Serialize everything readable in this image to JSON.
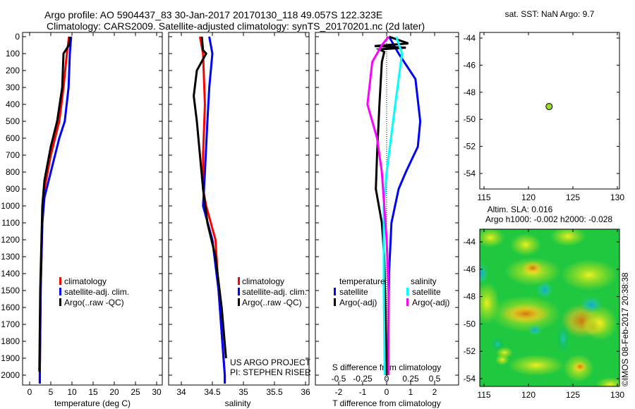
{
  "title_line1": "Argo profile: AO 5904437_83 30-Jan-2017 20170130_118 49.057S 122.323E",
  "title_line2": "Climatology: CARS2009. Satellite-adjusted climatology: synTS_20170201.nc (2d later)",
  "colors": {
    "climatology": "#ff0000",
    "satellite": "#0000ff",
    "argo": "#000000",
    "sal_satellite": "#00ffff",
    "sal_argo": "#ff00ff",
    "map_point": "#99dd22"
  },
  "chart_data": [
    {
      "type": "line",
      "name": "temperature",
      "xlabel": "temperature (deg C)",
      "ylabel": "",
      "xlim": [
        -1,
        31
      ],
      "ylim": [
        2050,
        0
      ],
      "xticks": [
        "0",
        "5",
        "10",
        "15",
        "20",
        "25",
        "30"
      ],
      "xtick_values": [
        0,
        5,
        10,
        15,
        20,
        25,
        30
      ],
      "yticks": [
        "0",
        "100",
        "200",
        "300",
        "400",
        "500",
        "600",
        "700",
        "800",
        "900",
        "1000",
        "1100",
        "1200",
        "1300",
        "1400",
        "1500",
        "1600",
        "1700",
        "1800",
        "1900",
        "2000"
      ],
      "legend": [
        "climatology",
        "satellite-adj. clim.",
        "Argo(..raw -QC)"
      ],
      "series": [
        {
          "name": "climatology",
          "depth": [
            0,
            100,
            300,
            500,
            700,
            900,
            1100,
            1500,
            2000,
            2050
          ],
          "values": [
            9.3,
            8.8,
            8.0,
            7.0,
            5.0,
            3.5,
            3.0,
            2.6,
            2.4,
            2.4
          ]
        },
        {
          "name": "satellite-adj. clim.",
          "depth": [
            0,
            100,
            300,
            500,
            600,
            800,
            950,
            1100,
            1500,
            2000,
            2050
          ],
          "values": [
            9.8,
            9.5,
            9.2,
            8.3,
            7.0,
            5.0,
            3.5,
            3.0,
            2.6,
            2.4,
            2.4
          ]
        },
        {
          "name": "Argo(..raw -QC)",
          "depth": [
            0,
            50,
            100,
            300,
            500,
            650,
            850,
            1000,
            1500,
            1980
          ],
          "values": [
            9.5,
            9.3,
            8.0,
            7.7,
            6.5,
            5.0,
            3.5,
            3.0,
            2.5,
            2.3
          ]
        }
      ],
      "annotation": []
    },
    {
      "type": "line",
      "name": "salinity",
      "xlabel": "salinity",
      "xlim": [
        33.8,
        36.1
      ],
      "ylim": [
        2050,
        0
      ],
      "xticks": [
        "34",
        "34.5",
        "35",
        "35.5",
        "36"
      ],
      "xtick_values": [
        34,
        34.5,
        35,
        35.5,
        36
      ],
      "legend": [
        "climatology",
        "satellite-adj. clim.",
        "Argo(..raw -QC)"
      ],
      "series": [
        {
          "name": "climatology",
          "depth": [
            0,
            100,
            400,
            700,
            900,
            1000,
            1200,
            1500,
            2000,
            2050
          ],
          "values": [
            34.3,
            34.35,
            34.38,
            34.35,
            34.35,
            34.4,
            34.55,
            34.6,
            34.7,
            34.7
          ]
        },
        {
          "name": "satellite-adj. clim.",
          "depth": [
            0,
            100,
            300,
            500,
            800,
            1000,
            1200,
            1500,
            2000,
            2050
          ],
          "values": [
            34.45,
            34.5,
            34.45,
            34.42,
            34.38,
            34.35,
            34.5,
            34.6,
            34.7,
            34.7
          ]
        },
        {
          "name": "Argo(..raw -QC)",
          "depth": [
            0,
            80,
            100,
            200,
            350,
            500,
            700,
            900,
            1100,
            1300,
            1600,
            1900
          ],
          "values": [
            34.33,
            34.35,
            34.4,
            34.25,
            34.2,
            34.25,
            34.3,
            34.35,
            34.42,
            34.55,
            34.65,
            34.72
          ]
        }
      ],
      "annotation": [
        "US ARGO PROJECT",
        "PI: STEPHEN RISER"
      ]
    },
    {
      "type": "line",
      "name": "difference",
      "xlabel": "T difference from climatology",
      "x2label": "S difference from climatology",
      "xlim": [
        -3,
        2.8
      ],
      "ylim": [
        2050,
        0
      ],
      "xticks": [
        "-2",
        "-1",
        "0",
        "1",
        "2"
      ],
      "xtick_values": [
        -2,
        -1,
        0,
        1,
        2
      ],
      "x2ticks": [
        "-0.5",
        "-0.25",
        "0",
        "0.25",
        "0.5"
      ],
      "x2tick_values": [
        -0.5,
        -0.25,
        0,
        0.25,
        0.5
      ],
      "legend_headers": [
        "temperature",
        "salinity"
      ],
      "legend": [
        "satellite",
        "Argo(-adj)",
        "satellite",
        "Argo(-adj)"
      ],
      "series": [
        {
          "name": "T satellite",
          "depth": [
            0,
            50,
            100,
            250,
            500,
            650,
            800,
            900,
            1100,
            1400,
            2000
          ],
          "values": [
            0.1,
            0.3,
            0.5,
            1.2,
            1.4,
            1.3,
            0.8,
            0.5,
            0.2,
            0.1,
            0.05
          ]
        },
        {
          "name": "T Argo(-adj)",
          "depth": [
            0,
            40,
            55,
            65,
            75,
            90,
            150,
            400,
            700,
            900,
            1100,
            1300,
            1600,
            2000
          ],
          "values": [
            0.1,
            0.9,
            -0.5,
            0.8,
            -0.3,
            -0.1,
            -0.2,
            -0.3,
            -0.4,
            -0.45,
            -0.2,
            -0.1,
            -0.05,
            0
          ]
        },
        {
          "name": "S satellite",
          "depth": [
            0,
            100,
            400,
            800,
            1000,
            1500,
            2000
          ],
          "values": [
            0.1,
            0.16,
            0.09,
            0,
            -0.03,
            -0.03,
            -0.02
          ]
        },
        {
          "name": "S Argo(-adj)",
          "depth": [
            0,
            50,
            150,
            400,
            600,
            800,
            1200,
            1500,
            2000
          ],
          "values": [
            0.02,
            -0.05,
            -0.15,
            -0.2,
            -0.1,
            -0.05,
            0,
            0.02,
            0.02
          ]
        }
      ]
    },
    {
      "type": "scatter",
      "name": "sst-map",
      "title": "sat. SST: NaN Argo: 9.7",
      "xlim": [
        114.5,
        130.2
      ],
      "ylim": [
        -55,
        -43
      ],
      "xticks": [
        "115",
        "120",
        "125",
        "130"
      ],
      "xtick_values": [
        115,
        120,
        125,
        130
      ],
      "yticks": [
        "-44",
        "-46",
        "-48",
        "-50",
        "-52",
        "-54"
      ],
      "ytick_values": [
        -44,
        -46,
        -48,
        -50,
        -52,
        -54
      ],
      "points": [
        {
          "x": 122.323,
          "y": -49.057
        }
      ]
    },
    {
      "type": "heatmap",
      "name": "sla-map",
      "title": [
        "Altim. SLA: 0.016",
        "Argo h1000: -0.002 h2000: -0.028"
      ],
      "xlim": [
        114.5,
        130.2
      ],
      "ylim": [
        -55,
        -43
      ],
      "xticks": [
        "115",
        "120",
        "125",
        "130"
      ],
      "xtick_values": [
        115,
        120,
        125,
        130
      ],
      "yticks": [
        "-44",
        "-46",
        "-48",
        "-50",
        "-52",
        "-54"
      ],
      "ytick_values": [
        -44,
        -46,
        -48,
        -50,
        -52,
        -54
      ],
      "side_label": "©IMOS 08-Feb-2017 20:38:38"
    }
  ]
}
